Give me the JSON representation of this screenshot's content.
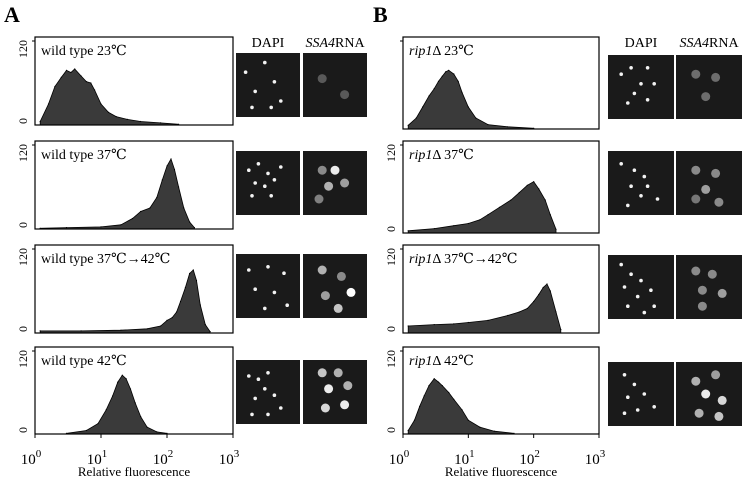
{
  "figure": {
    "panels": [
      {
        "letter": "A",
        "header": {
          "dapi": "DAPI",
          "rna_gene": "SSA4",
          "rna_suffix": "RNA"
        },
        "xlabel": "Relative fluorescence",
        "xticks": [
          {
            "base": "10",
            "exp": "0"
          },
          {
            "base": "10",
            "exp": "1"
          },
          {
            "base": "10",
            "exp": "2"
          },
          {
            "base": "10",
            "exp": "3"
          }
        ],
        "rows": [
          {
            "label": "wild type 23℃",
            "label_italic": "",
            "ytick_top": "120",
            "ytick_bottom": "0"
          },
          {
            "label": "wild type 37℃",
            "label_italic": "",
            "ytick_top": "120",
            "ytick_bottom": "0"
          },
          {
            "label": "wild type 37℃→42℃",
            "label_italic": "",
            "ytick_top": "120",
            "ytick_bottom": "0"
          },
          {
            "label": "wild type 42℃",
            "label_italic": "",
            "ytick_top": "120",
            "ytick_bottom": "0"
          }
        ]
      },
      {
        "letter": "B",
        "header": {
          "dapi": "DAPI",
          "rna_gene": "SSA4",
          "rna_suffix": "RNA"
        },
        "xlabel": "Relative fluorescence",
        "xticks": [
          {
            "base": "10",
            "exp": "0"
          },
          {
            "base": "10",
            "exp": "1"
          },
          {
            "base": "10",
            "exp": "2"
          },
          {
            "base": "10",
            "exp": "3"
          }
        ],
        "rows": [
          {
            "label": "Δ  23℃",
            "label_italic": "rip1",
            "ytick_top": "",
            "ytick_bottom": ""
          },
          {
            "label": "Δ  37℃",
            "label_italic": "rip1",
            "ytick_top": "120",
            "ytick_bottom": "0"
          },
          {
            "label": "Δ  37℃→42℃",
            "label_italic": "rip1",
            "ytick_top": "120",
            "ytick_bottom": "0"
          },
          {
            "label": "Δ  42℃",
            "label_italic": "rip1",
            "ytick_top": "120",
            "ytick_bottom": "0"
          }
        ]
      }
    ]
  },
  "chart_data": [
    {
      "type": "area",
      "title": "wild type 23℃",
      "xlabel": "Relative fluorescence",
      "ylabel": "",
      "x_scale": "log",
      "xlim": [
        1,
        1000
      ],
      "ylim": [
        0,
        120
      ],
      "x": [
        1.2,
        1.6,
        2,
        2.5,
        3,
        3.5,
        4,
        5,
        6,
        7,
        8,
        10,
        13,
        17,
        25,
        40,
        80,
        150
      ],
      "y": [
        5,
        30,
        55,
        68,
        78,
        75,
        80,
        70,
        62,
        60,
        50,
        30,
        18,
        12,
        8,
        5,
        3,
        1
      ]
    },
    {
      "type": "area",
      "title": "wild type 37℃",
      "xlabel": "Relative fluorescence",
      "ylabel": "",
      "x_scale": "log",
      "xlim": [
        1,
        1000
      ],
      "ylim": [
        0,
        120
      ],
      "x": [
        1.2,
        3,
        10,
        20,
        30,
        40,
        55,
        70,
        85,
        100,
        115,
        130,
        150,
        180,
        220,
        260
      ],
      "y": [
        1,
        2,
        3,
        6,
        15,
        25,
        30,
        45,
        70,
        90,
        100,
        85,
        60,
        30,
        10,
        2
      ]
    },
    {
      "type": "area",
      "title": "wild type 37℃→42℃",
      "xlabel": "Relative fluorescence",
      "ylabel": "",
      "x_scale": "log",
      "xlim": [
        1,
        1000
      ],
      "ylim": [
        0,
        120
      ],
      "x": [
        1.2,
        5,
        20,
        50,
        80,
        100,
        120,
        140,
        160,
        190,
        220,
        250,
        280,
        320,
        380,
        450
      ],
      "y": [
        3,
        3,
        4,
        6,
        10,
        18,
        22,
        30,
        45,
        65,
        85,
        90,
        75,
        40,
        12,
        2
      ]
    },
    {
      "type": "area",
      "title": "wild type 42℃",
      "xlabel": "Relative fluorescence",
      "ylabel": "",
      "x_scale": "log",
      "xlim": [
        1,
        1000
      ],
      "ylim": [
        0,
        120
      ],
      "x": [
        3,
        6,
        9,
        12,
        15,
        18,
        21,
        24,
        28,
        33,
        40,
        50,
        70,
        100
      ],
      "y": [
        1,
        5,
        15,
        35,
        55,
        75,
        85,
        80,
        65,
        45,
        25,
        10,
        3,
        1
      ]
    },
    {
      "type": "area",
      "title": "rip1Δ  23℃",
      "xlabel": "Relative fluorescence",
      "ylabel": "",
      "x_scale": "log",
      "xlim": [
        1,
        1000
      ],
      "ylim": [
        0,
        120
      ],
      "x": [
        1.2,
        1.6,
        2,
        2.5,
        3,
        3.5,
        4,
        4.5,
        5,
        6,
        7,
        8,
        10,
        13,
        20,
        40,
        100
      ],
      "y": [
        5,
        15,
        30,
        45,
        55,
        65,
        72,
        78,
        80,
        75,
        65,
        50,
        30,
        15,
        6,
        3,
        1
      ]
    },
    {
      "type": "area",
      "title": "rip1Δ  37℃",
      "xlabel": "Relative fluorescence",
      "ylabel": "",
      "x_scale": "log",
      "xlim": [
        1,
        1000
      ],
      "ylim": [
        0,
        120
      ],
      "x": [
        1.2,
        3,
        6,
        10,
        15,
        20,
        30,
        45,
        60,
        80,
        100,
        120,
        150,
        180,
        220
      ],
      "y": [
        3,
        6,
        10,
        13,
        18,
        25,
        35,
        45,
        55,
        65,
        70,
        60,
        45,
        25,
        5
      ]
    },
    {
      "type": "area",
      "title": "rip1Δ  37℃→42℃",
      "xlabel": "Relative fluorescence",
      "ylabel": "",
      "x_scale": "log",
      "xlim": [
        1,
        1000
      ],
      "ylim": [
        0,
        120
      ],
      "x": [
        1.2,
        3,
        6,
        10,
        20,
        40,
        60,
        80,
        100,
        120,
        140,
        160,
        180,
        220,
        260
      ],
      "y": [
        10,
        12,
        13,
        15,
        18,
        25,
        30,
        35,
        45,
        55,
        65,
        70,
        60,
        30,
        5
      ]
    },
    {
      "type": "area",
      "title": "rip1Δ  42℃",
      "xlabel": "Relative fluorescence",
      "ylabel": "",
      "x_scale": "log",
      "xlim": [
        1,
        1000
      ],
      "ylim": [
        0,
        120
      ],
      "x": [
        1.2,
        1.5,
        1.8,
        2.1,
        2.5,
        3,
        3.5,
        4,
        5,
        6,
        8,
        10,
        15,
        25,
        50
      ],
      "y": [
        5,
        20,
        40,
        55,
        70,
        80,
        75,
        70,
        60,
        50,
        35,
        20,
        10,
        4,
        1
      ]
    }
  ],
  "micrographs": {
    "A": [
      {
        "dapi": [
          [
            0.15,
            0.3
          ],
          [
            0.45,
            0.15
          ],
          [
            0.6,
            0.45
          ],
          [
            0.3,
            0.6
          ],
          [
            0.7,
            0.75
          ],
          [
            0.55,
            0.85
          ],
          [
            0.25,
            0.85
          ]
        ],
        "rna": [
          [
            0.3,
            0.4,
            0.15
          ],
          [
            0.65,
            0.65,
            0.15
          ]
        ]
      },
      {
        "dapi": [
          [
            0.2,
            0.3
          ],
          [
            0.35,
            0.2
          ],
          [
            0.5,
            0.35
          ],
          [
            0.3,
            0.5
          ],
          [
            0.45,
            0.55
          ],
          [
            0.6,
            0.45
          ],
          [
            0.7,
            0.25
          ],
          [
            0.25,
            0.7
          ],
          [
            0.55,
            0.7
          ]
        ],
        "rna": [
          [
            0.3,
            0.3,
            0.4
          ],
          [
            0.5,
            0.3,
            0.9
          ],
          [
            0.65,
            0.5,
            0.5
          ],
          [
            0.4,
            0.55,
            0.6
          ],
          [
            0.25,
            0.75,
            0.35
          ]
        ]
      },
      {
        "dapi": [
          [
            0.2,
            0.25
          ],
          [
            0.5,
            0.2
          ],
          [
            0.75,
            0.3
          ],
          [
            0.3,
            0.55
          ],
          [
            0.6,
            0.6
          ],
          [
            0.45,
            0.85
          ],
          [
            0.8,
            0.8
          ]
        ],
        "rna": [
          [
            0.3,
            0.25,
            0.6
          ],
          [
            0.6,
            0.35,
            0.4
          ],
          [
            0.75,
            0.6,
            1.0
          ],
          [
            0.35,
            0.65,
            0.5
          ],
          [
            0.55,
            0.85,
            0.7
          ]
        ]
      },
      {
        "dapi": [
          [
            0.2,
            0.25
          ],
          [
            0.35,
            0.3
          ],
          [
            0.5,
            0.2
          ],
          [
            0.45,
            0.45
          ],
          [
            0.6,
            0.55
          ],
          [
            0.3,
            0.6
          ],
          [
            0.7,
            0.75
          ],
          [
            0.5,
            0.85
          ],
          [
            0.25,
            0.85
          ]
        ],
        "rna": [
          [
            0.3,
            0.2,
            0.7
          ],
          [
            0.55,
            0.2,
            0.6
          ],
          [
            0.4,
            0.45,
            0.9
          ],
          [
            0.7,
            0.4,
            0.6
          ],
          [
            0.35,
            0.75,
            0.8
          ],
          [
            0.65,
            0.7,
            0.9
          ]
        ]
      }
    ],
    "B": [
      {
        "dapi": [
          [
            0.2,
            0.3
          ],
          [
            0.35,
            0.2
          ],
          [
            0.6,
            0.2
          ],
          [
            0.7,
            0.45
          ],
          [
            0.5,
            0.45
          ],
          [
            0.4,
            0.6
          ],
          [
            0.6,
            0.7
          ],
          [
            0.3,
            0.75
          ]
        ],
        "rna": [
          [
            0.3,
            0.3,
            0.25
          ],
          [
            0.6,
            0.35,
            0.25
          ],
          [
            0.45,
            0.65,
            0.25
          ]
        ]
      },
      {
        "dapi": [
          [
            0.2,
            0.2
          ],
          [
            0.4,
            0.3
          ],
          [
            0.55,
            0.4
          ],
          [
            0.35,
            0.55
          ],
          [
            0.6,
            0.55
          ],
          [
            0.5,
            0.7
          ],
          [
            0.75,
            0.75
          ],
          [
            0.3,
            0.85
          ]
        ],
        "rna": [
          [
            0.3,
            0.3,
            0.4
          ],
          [
            0.6,
            0.35,
            0.4
          ],
          [
            0.45,
            0.6,
            0.5
          ],
          [
            0.3,
            0.75,
            0.3
          ],
          [
            0.65,
            0.8,
            0.4
          ]
        ]
      },
      {
        "dapi": [
          [
            0.2,
            0.15
          ],
          [
            0.35,
            0.3
          ],
          [
            0.25,
            0.5
          ],
          [
            0.5,
            0.4
          ],
          [
            0.65,
            0.55
          ],
          [
            0.45,
            0.65
          ],
          [
            0.3,
            0.8
          ],
          [
            0.7,
            0.8
          ],
          [
            0.55,
            0.9
          ]
        ],
        "rna": [
          [
            0.3,
            0.25,
            0.4
          ],
          [
            0.55,
            0.3,
            0.4
          ],
          [
            0.4,
            0.55,
            0.4
          ],
          [
            0.7,
            0.6,
            0.5
          ],
          [
            0.4,
            0.8,
            0.4
          ]
        ]
      },
      {
        "dapi": [
          [
            0.25,
            0.2
          ],
          [
            0.4,
            0.35
          ],
          [
            0.3,
            0.55
          ],
          [
            0.55,
            0.5
          ],
          [
            0.45,
            0.75
          ],
          [
            0.7,
            0.7
          ],
          [
            0.25,
            0.8
          ]
        ],
        "rna": [
          [
            0.3,
            0.3,
            0.6
          ],
          [
            0.6,
            0.2,
            0.5
          ],
          [
            0.45,
            0.5,
            0.9
          ],
          [
            0.7,
            0.6,
            0.8
          ],
          [
            0.35,
            0.8,
            0.6
          ],
          [
            0.65,
            0.85,
            0.7
          ]
        ]
      }
    ]
  },
  "colors": {
    "fill": "#3a3a3a",
    "stroke": "#000000",
    "frame": "#000000"
  }
}
